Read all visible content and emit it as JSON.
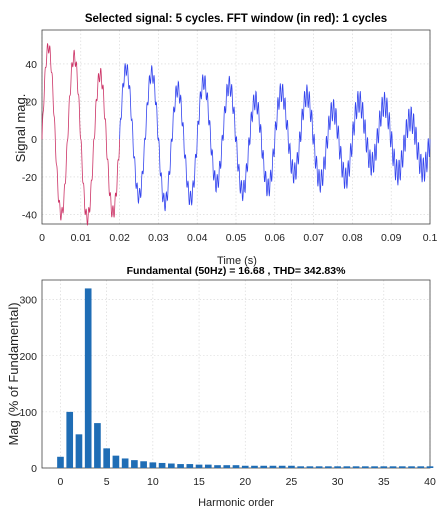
{
  "chart_data": [
    {
      "type": "line",
      "title": "Selected signal: 5 cycles. FFT window (in red): 1 cycles",
      "xlabel": "Time (s)",
      "ylabel": "Signal mag.",
      "xlim": [
        0,
        0.1
      ],
      "ylim": [
        -45,
        58
      ],
      "xticks": [
        "0",
        "0.01",
        "0.02",
        "0.03",
        "0.04",
        "0.05",
        "0.06",
        "0.07",
        "0.08",
        "0.09",
        "0.1"
      ],
      "yticks": [
        "-40",
        "-20",
        "0",
        "20",
        "40"
      ],
      "grid": true,
      "series": [
        {
          "color": "#cc3366",
          "x": [
            0,
            0.02
          ],
          "values": [
            0,
            0
          ]
        },
        {
          "color": "#3344ee",
          "x": [
            0.02,
            0.1
          ],
          "values": [
            0,
            0
          ]
        }
      ],
      "envelope": {
        "fundamental_hz": 50,
        "third_harmonic_peak": [
          50,
          14
        ],
        "high_freq_ripple": [
          3,
          7
        ]
      }
    },
    {
      "type": "bar",
      "title": "Fundamental (50Hz) = 16.68 , THD= 342.83%",
      "xlabel": "Harmonic order",
      "ylabel": "Mag (% of Fundamental)",
      "xlim": [
        -2,
        40
      ],
      "ylim": [
        0,
        335
      ],
      "xticks": [
        "0",
        "5",
        "10",
        "15",
        "20",
        "25",
        "30",
        "35",
        "40"
      ],
      "yticks": [
        "0",
        "100",
        "200",
        "300"
      ],
      "grid": true,
      "color": "#1f6db5",
      "categories": [
        0,
        1,
        2,
        3,
        4,
        5,
        6,
        7,
        8,
        9,
        10,
        11,
        12,
        13,
        14,
        15,
        16,
        17,
        18,
        19,
        20,
        21,
        22,
        23,
        24,
        25,
        26,
        27,
        28,
        29,
        30,
        31,
        32,
        33,
        34,
        35,
        36,
        37,
        38,
        39,
        40
      ],
      "values": [
        20,
        100,
        60,
        320,
        80,
        35,
        22,
        17,
        14,
        12,
        10,
        9,
        8,
        7,
        7,
        6,
        6,
        5,
        5,
        5,
        4,
        4,
        4,
        4,
        4,
        4,
        3,
        3,
        3,
        3,
        3,
        3,
        3,
        3,
        3,
        3,
        3,
        3,
        3,
        3,
        3
      ]
    }
  ]
}
